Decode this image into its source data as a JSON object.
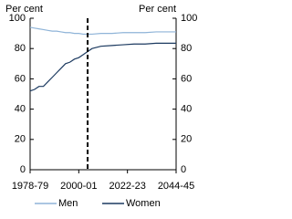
{
  "chart_data": {
    "type": "line",
    "y_label": "Per cent",
    "y2_label": "Per cent",
    "x": [
      1978,
      1980,
      1982,
      1984,
      1986,
      1988,
      1990,
      1992,
      1994,
      1996,
      1998,
      2000,
      2002,
      2004,
      2006,
      2010,
      2015,
      2020,
      2025,
      2030,
      2035,
      2040,
      2044
    ],
    "series": [
      {
        "name": "Men",
        "color": "#8fb4d8",
        "values": [
          94,
          93.5,
          93,
          92.5,
          92,
          91.5,
          91.5,
          91,
          90.5,
          90.5,
          90,
          90,
          89.5,
          89.5,
          89.5,
          90,
          90,
          90.5,
          90.5,
          90.5,
          91,
          91,
          91
        ]
      },
      {
        "name": "Women",
        "color": "#1c3a60",
        "values": [
          52,
          53,
          55,
          55,
          58,
          61,
          64,
          67,
          70,
          71,
          73,
          74,
          76,
          78,
          80,
          81.5,
          82,
          82.5,
          83,
          83,
          83.5,
          83.5,
          83.5
        ]
      }
    ],
    "xlim": [
      1978,
      2044
    ],
    "xticks": [
      {
        "value": 1978,
        "label": "1978-79"
      },
      {
        "value": 2000,
        "label": "2000-01"
      },
      {
        "value": 2022,
        "label": "2022-23"
      },
      {
        "value": 2044,
        "label": "2044-45"
      }
    ],
    "ylim": [
      0,
      100
    ],
    "yticks": [
      0,
      20,
      40,
      60,
      80,
      100
    ],
    "y2lim": [
      0,
      100
    ],
    "y2ticks": [
      0,
      20,
      40,
      60,
      80,
      100
    ],
    "vline_x": 2004
  }
}
